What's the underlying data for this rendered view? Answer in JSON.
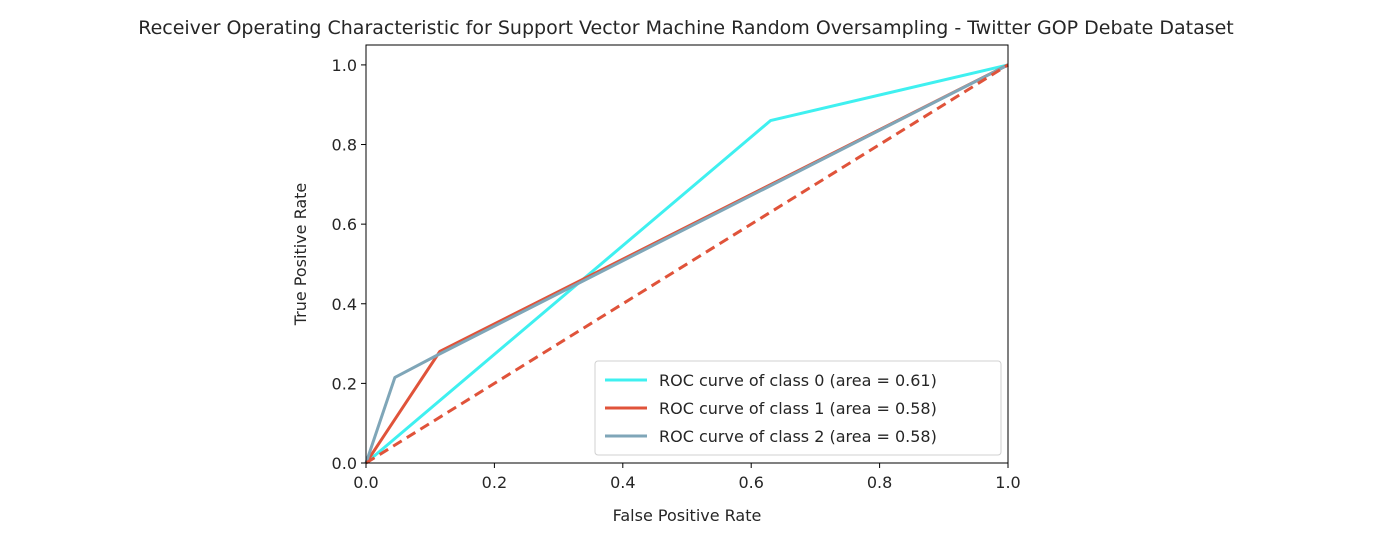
{
  "chart_data": {
    "type": "line",
    "title": "Receiver Operating Characteristic for Support Vector Machine Random Oversampling - Twitter GOP Debate Dataset",
    "xlabel": "False Positive Rate",
    "ylabel": "True Positive Rate",
    "xlim": [
      0.0,
      1.0
    ],
    "ylim": [
      0.0,
      1.05
    ],
    "x_ticks": [
      "0.0",
      "0.2",
      "0.4",
      "0.6",
      "0.8",
      "1.0"
    ],
    "y_ticks": [
      "0.0",
      "0.2",
      "0.4",
      "0.6",
      "0.8",
      "1.0"
    ],
    "grid": false,
    "legend_position": "lower-right",
    "series": [
      {
        "name": "ROC curve of class 0 (area = 0.61)",
        "color": "#3ff0f0",
        "style": "solid",
        "x": [
          0.0,
          0.63,
          1.0
        ],
        "y": [
          0.0,
          0.86,
          1.0
        ]
      },
      {
        "name": "ROC curve of class 1 (area = 0.58)",
        "color": "#e0533a",
        "style": "solid",
        "x": [
          0.0,
          0.115,
          1.0
        ],
        "y": [
          0.0,
          0.28,
          1.0
        ]
      },
      {
        "name": "ROC curve of class 2 (area = 0.58)",
        "color": "#7fa6b8",
        "style": "solid",
        "x": [
          0.0,
          0.045,
          0.11,
          1.0
        ],
        "y": [
          0.0,
          0.215,
          0.27,
          1.0
        ]
      }
    ],
    "reference_line": {
      "color": "#e0533a",
      "style": "dashed",
      "x": [
        0.0,
        1.0
      ],
      "y": [
        0.0,
        1.0
      ]
    }
  }
}
